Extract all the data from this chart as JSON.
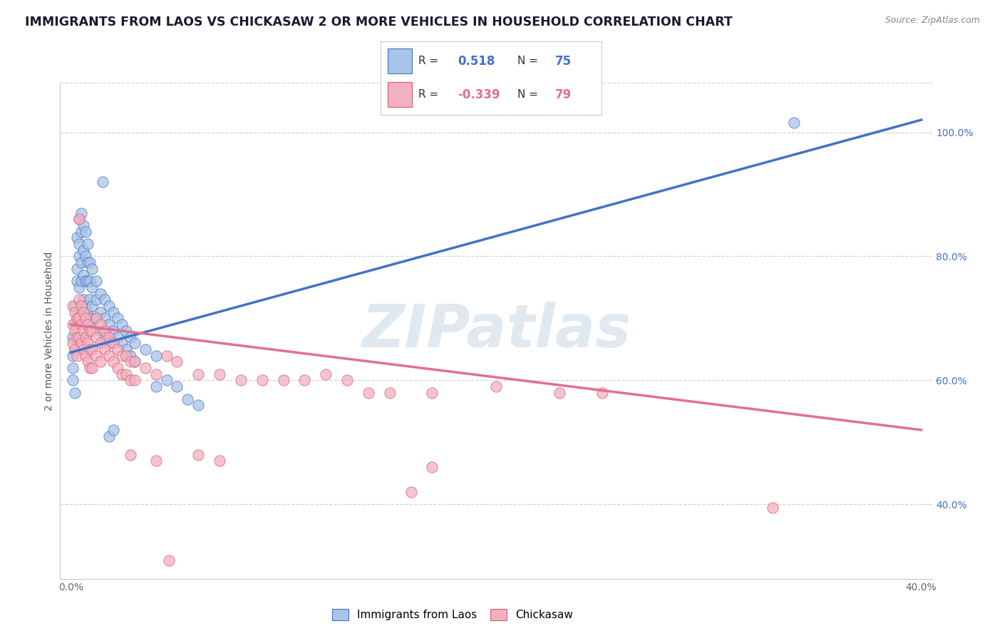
{
  "title": "IMMIGRANTS FROM LAOS VS CHICKASAW 2 OR MORE VEHICLES IN HOUSEHOLD CORRELATION CHART",
  "source": "Source: ZipAtlas.com",
  "ylabel": "2 or more Vehicles in Household",
  "blue_R": "0.518",
  "blue_N": "75",
  "pink_R": "-0.339",
  "pink_N": "79",
  "blue_color": "#a8c4e8",
  "pink_color": "#f4b0c0",
  "blue_line_color": "#4472c4",
  "pink_line_color": "#e07090",
  "watermark": "ZIPatlas",
  "blue_scatter": [
    [
      0.001,
      0.67
    ],
    [
      0.001,
      0.64
    ],
    [
      0.001,
      0.62
    ],
    [
      0.001,
      0.6
    ],
    [
      0.002,
      0.72
    ],
    [
      0.002,
      0.69
    ],
    [
      0.002,
      0.65
    ],
    [
      0.002,
      0.58
    ],
    [
      0.003,
      0.78
    ],
    [
      0.003,
      0.83
    ],
    [
      0.003,
      0.76
    ],
    [
      0.003,
      0.7
    ],
    [
      0.004,
      0.82
    ],
    [
      0.004,
      0.86
    ],
    [
      0.004,
      0.8
    ],
    [
      0.004,
      0.75
    ],
    [
      0.005,
      0.87
    ],
    [
      0.005,
      0.84
    ],
    [
      0.005,
      0.79
    ],
    [
      0.005,
      0.76
    ],
    [
      0.006,
      0.85
    ],
    [
      0.006,
      0.81
    ],
    [
      0.006,
      0.77
    ],
    [
      0.006,
      0.73
    ],
    [
      0.007,
      0.84
    ],
    [
      0.007,
      0.8
    ],
    [
      0.007,
      0.76
    ],
    [
      0.007,
      0.72
    ],
    [
      0.008,
      0.82
    ],
    [
      0.008,
      0.79
    ],
    [
      0.008,
      0.76
    ],
    [
      0.008,
      0.71
    ],
    [
      0.009,
      0.79
    ],
    [
      0.009,
      0.76
    ],
    [
      0.009,
      0.73
    ],
    [
      0.009,
      0.7
    ],
    [
      0.01,
      0.78
    ],
    [
      0.01,
      0.75
    ],
    [
      0.01,
      0.72
    ],
    [
      0.01,
      0.69
    ],
    [
      0.012,
      0.76
    ],
    [
      0.012,
      0.73
    ],
    [
      0.012,
      0.7
    ],
    [
      0.014,
      0.74
    ],
    [
      0.014,
      0.71
    ],
    [
      0.014,
      0.68
    ],
    [
      0.016,
      0.73
    ],
    [
      0.016,
      0.7
    ],
    [
      0.016,
      0.67
    ],
    [
      0.018,
      0.72
    ],
    [
      0.018,
      0.69
    ],
    [
      0.018,
      0.66
    ],
    [
      0.02,
      0.71
    ],
    [
      0.02,
      0.68
    ],
    [
      0.022,
      0.7
    ],
    [
      0.022,
      0.67
    ],
    [
      0.024,
      0.69
    ],
    [
      0.024,
      0.66
    ],
    [
      0.026,
      0.68
    ],
    [
      0.026,
      0.65
    ],
    [
      0.028,
      0.67
    ],
    [
      0.028,
      0.64
    ],
    [
      0.03,
      0.66
    ],
    [
      0.03,
      0.63
    ],
    [
      0.035,
      0.65
    ],
    [
      0.04,
      0.64
    ],
    [
      0.04,
      0.59
    ],
    [
      0.045,
      0.6
    ],
    [
      0.05,
      0.59
    ],
    [
      0.055,
      0.57
    ],
    [
      0.06,
      0.56
    ],
    [
      0.018,
      0.51
    ],
    [
      0.02,
      0.52
    ],
    [
      0.34,
      1.015
    ],
    [
      0.015,
      0.92
    ]
  ],
  "pink_scatter": [
    [
      0.001,
      0.72
    ],
    [
      0.001,
      0.69
    ],
    [
      0.001,
      0.66
    ],
    [
      0.002,
      0.71
    ],
    [
      0.002,
      0.68
    ],
    [
      0.002,
      0.65
    ],
    [
      0.003,
      0.7
    ],
    [
      0.003,
      0.67
    ],
    [
      0.003,
      0.64
    ],
    [
      0.004,
      0.73
    ],
    [
      0.004,
      0.7
    ],
    [
      0.004,
      0.67
    ],
    [
      0.005,
      0.72
    ],
    [
      0.005,
      0.69
    ],
    [
      0.005,
      0.66
    ],
    [
      0.006,
      0.71
    ],
    [
      0.006,
      0.68
    ],
    [
      0.006,
      0.65
    ],
    [
      0.007,
      0.7
    ],
    [
      0.007,
      0.67
    ],
    [
      0.007,
      0.64
    ],
    [
      0.008,
      0.69
    ],
    [
      0.008,
      0.66
    ],
    [
      0.008,
      0.63
    ],
    [
      0.009,
      0.68
    ],
    [
      0.009,
      0.65
    ],
    [
      0.009,
      0.62
    ],
    [
      0.01,
      0.68
    ],
    [
      0.01,
      0.65
    ],
    [
      0.01,
      0.62
    ],
    [
      0.012,
      0.7
    ],
    [
      0.012,
      0.67
    ],
    [
      0.012,
      0.64
    ],
    [
      0.014,
      0.69
    ],
    [
      0.014,
      0.66
    ],
    [
      0.014,
      0.63
    ],
    [
      0.016,
      0.68
    ],
    [
      0.016,
      0.65
    ],
    [
      0.018,
      0.67
    ],
    [
      0.018,
      0.64
    ],
    [
      0.02,
      0.66
    ],
    [
      0.02,
      0.63
    ],
    [
      0.022,
      0.65
    ],
    [
      0.022,
      0.62
    ],
    [
      0.024,
      0.64
    ],
    [
      0.024,
      0.61
    ],
    [
      0.026,
      0.64
    ],
    [
      0.026,
      0.61
    ],
    [
      0.028,
      0.63
    ],
    [
      0.028,
      0.6
    ],
    [
      0.03,
      0.63
    ],
    [
      0.03,
      0.6
    ],
    [
      0.035,
      0.62
    ],
    [
      0.04,
      0.61
    ],
    [
      0.045,
      0.64
    ],
    [
      0.05,
      0.63
    ],
    [
      0.06,
      0.61
    ],
    [
      0.07,
      0.61
    ],
    [
      0.08,
      0.6
    ],
    [
      0.09,
      0.6
    ],
    [
      0.1,
      0.6
    ],
    [
      0.11,
      0.6
    ],
    [
      0.12,
      0.61
    ],
    [
      0.13,
      0.6
    ],
    [
      0.14,
      0.58
    ],
    [
      0.15,
      0.58
    ],
    [
      0.17,
      0.58
    ],
    [
      0.2,
      0.59
    ],
    [
      0.23,
      0.58
    ],
    [
      0.25,
      0.58
    ],
    [
      0.004,
      0.86
    ],
    [
      0.028,
      0.48
    ],
    [
      0.04,
      0.47
    ],
    [
      0.06,
      0.48
    ],
    [
      0.07,
      0.47
    ],
    [
      0.16,
      0.42
    ],
    [
      0.33,
      0.395
    ],
    [
      0.046,
      0.31
    ],
    [
      0.17,
      0.46
    ]
  ],
  "blue_line_x": [
    0.0,
    0.4
  ],
  "blue_line_y": [
    0.645,
    1.02
  ],
  "pink_line_x": [
    0.0,
    0.4
  ],
  "pink_line_y": [
    0.69,
    0.52
  ],
  "xlim": [
    -0.005,
    0.405
  ],
  "ylim": [
    0.28,
    1.08
  ],
  "x_ticks": [
    0.0,
    0.1,
    0.2,
    0.3,
    0.4
  ],
  "x_tick_labels": [
    "0.0%",
    "",
    "",
    "",
    "40.0%"
  ],
  "right_y_ticks": [
    0.4,
    0.6,
    0.8,
    1.0
  ],
  "right_y_labels": [
    "40.0%",
    "60.0%",
    "80.0%",
    "100.0%"
  ],
  "grid_color": "#c8c8d0",
  "background_color": "#ffffff",
  "title_fontsize": 12.5,
  "axis_label_fontsize": 10,
  "tick_fontsize": 10
}
